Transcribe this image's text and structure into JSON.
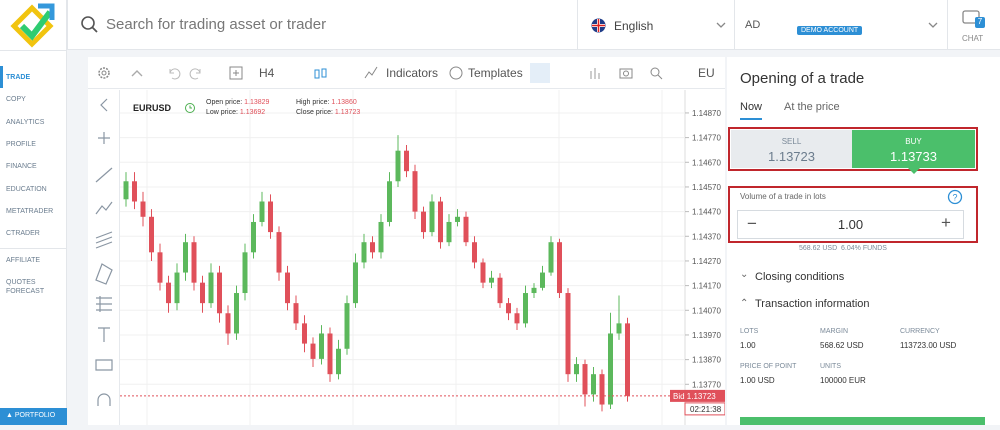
{
  "sidebar": {
    "menu": [
      "TRADE",
      "COPY",
      "ANALYTICS",
      "PROFILE",
      "FINANCE",
      "EDUCATION",
      "METATRADER",
      "CTRADER"
    ],
    "secondary": [
      "AFFILIATE",
      "QUOTES FORECAST"
    ],
    "portfolio": "PORTFOLIO"
  },
  "topbar": {
    "search": "Search for trading asset or trader",
    "language": "English",
    "account": "AD",
    "account_badge": "DEMO ACCOUNT",
    "chat": "CHAT",
    "chat_count": "7"
  },
  "toolbar": {
    "timeframe": "H4",
    "indicators": "Indicators",
    "templates": "Templates",
    "symbol_cut": "EU"
  },
  "chart": {
    "symbol": "EURUSD",
    "info": [
      [
        "Open price:",
        "1.13829"
      ],
      [
        "Low price:",
        "1.13692"
      ],
      [
        "High price:",
        "1.13860"
      ],
      [
        "Close price:",
        "1.13723"
      ]
    ],
    "ylim": [
      1.13605,
      1.14963
    ],
    "yticks": [
      {
        "value": 1.1487,
        "label": "1.14870"
      },
      {
        "value": 1.1477,
        "label": "1.14770"
      },
      {
        "value": 1.1467,
        "label": "1.14670"
      },
      {
        "value": 1.1457,
        "label": "1.14570"
      },
      {
        "value": 1.1447,
        "label": "1.14470"
      },
      {
        "value": 1.1437,
        "label": "1.14370"
      },
      {
        "value": 1.1427,
        "label": "1.14270"
      },
      {
        "value": 1.1417,
        "label": "1.14170"
      },
      {
        "value": 1.1407,
        "label": "1.14070"
      },
      {
        "value": 1.1397,
        "label": "1.13970"
      },
      {
        "value": 1.1387,
        "label": "1.13870"
      },
      {
        "value": 1.1377,
        "label": "1.13770"
      }
    ],
    "bid_title": "Bid",
    "bid": {
      "value": 1.13723,
      "label": "1.13723"
    },
    "timer": "02:21:38",
    "up_color": "#5cb85c",
    "down_color": "#e0505a",
    "candles": [
      [
        1.1452,
        1.1463,
        1.1449,
        1.14593
      ],
      [
        1.14593,
        1.1463,
        1.1448,
        1.14511
      ],
      [
        1.14511,
        1.1455,
        1.1441,
        1.14449
      ],
      [
        1.14449,
        1.1448,
        1.1427,
        1.14305
      ],
      [
        1.14305,
        1.1434,
        1.1415,
        1.14182
      ],
      [
        1.14182,
        1.1421,
        1.1406,
        1.14099
      ],
      [
        1.14099,
        1.1426,
        1.1407,
        1.14223
      ],
      [
        1.14223,
        1.1438,
        1.1419,
        1.14346
      ],
      [
        1.14346,
        1.1437,
        1.1415,
        1.14182
      ],
      [
        1.14182,
        1.1421,
        1.1406,
        1.14099
      ],
      [
        1.14099,
        1.1426,
        1.1408,
        1.14223
      ],
      [
        1.14223,
        1.1425,
        1.1402,
        1.14058
      ],
      [
        1.14058,
        1.1409,
        1.1393,
        1.13976
      ],
      [
        1.13976,
        1.1417,
        1.1395,
        1.1414
      ],
      [
        1.1414,
        1.1434,
        1.1411,
        1.14305
      ],
      [
        1.14305,
        1.1446,
        1.1428,
        1.14428
      ],
      [
        1.14428,
        1.1455,
        1.1441,
        1.14511
      ],
      [
        1.14511,
        1.1454,
        1.1436,
        1.14387
      ],
      [
        1.14387,
        1.1441,
        1.1419,
        1.14223
      ],
      [
        1.14223,
        1.1425,
        1.1407,
        1.14099
      ],
      [
        1.14099,
        1.1413,
        1.1399,
        1.14017
      ],
      [
        1.14017,
        1.1405,
        1.139,
        1.13935
      ],
      [
        1.13935,
        1.1396,
        1.1384,
        1.13873
      ],
      [
        1.13873,
        1.1401,
        1.1385,
        1.13976
      ],
      [
        1.13976,
        1.14,
        1.1378,
        1.13811
      ],
      [
        1.13811,
        1.1395,
        1.1379,
        1.13914
      ],
      [
        1.13914,
        1.1413,
        1.1389,
        1.14099
      ],
      [
        1.14099,
        1.143,
        1.1408,
        1.14264
      ],
      [
        1.14264,
        1.1438,
        1.1424,
        1.14346
      ],
      [
        1.14346,
        1.1437,
        1.1428,
        1.14305
      ],
      [
        1.14305,
        1.1446,
        1.1428,
        1.14428
      ],
      [
        1.14428,
        1.1463,
        1.1441,
        1.14593
      ],
      [
        1.14593,
        1.1478,
        1.1457,
        1.14717
      ],
      [
        1.14717,
        1.1474,
        1.1461,
        1.14634
      ],
      [
        1.14634,
        1.1466,
        1.1444,
        1.1447
      ],
      [
        1.1447,
        1.1449,
        1.1436,
        1.14387
      ],
      [
        1.14387,
        1.1454,
        1.1437,
        1.14511
      ],
      [
        1.14511,
        1.1453,
        1.1432,
        1.14346
      ],
      [
        1.14346,
        1.1446,
        1.1433,
        1.14428
      ],
      [
        1.14428,
        1.1448,
        1.1441,
        1.14449
      ],
      [
        1.14449,
        1.1447,
        1.1433,
        1.14346
      ],
      [
        1.14346,
        1.1437,
        1.1424,
        1.14264
      ],
      [
        1.14264,
        1.1428,
        1.1416,
        1.14182
      ],
      [
        1.14182,
        1.1423,
        1.1416,
        1.14202
      ],
      [
        1.14202,
        1.1422,
        1.1408,
        1.14099
      ],
      [
        1.14099,
        1.1412,
        1.1403,
        1.14058
      ],
      [
        1.14058,
        1.1408,
        1.1399,
        1.14017
      ],
      [
        1.14017,
        1.1417,
        1.14,
        1.1414
      ],
      [
        1.1414,
        1.1418,
        1.1412,
        1.14161
      ],
      [
        1.14161,
        1.1425,
        1.1415,
        1.14223
      ],
      [
        1.14223,
        1.1437,
        1.1421,
        1.14346
      ],
      [
        1.14346,
        1.1436,
        1.1412,
        1.1414
      ],
      [
        1.1414,
        1.1416,
        1.1378,
        1.13811
      ],
      [
        1.13811,
        1.1388,
        1.1378,
        1.13852
      ],
      [
        1.13852,
        1.1387,
        1.1368,
        1.13729
      ],
      [
        1.13729,
        1.1384,
        1.137,
        1.13811
      ],
      [
        1.13811,
        1.1383,
        1.1366,
        1.13688
      ],
      [
        1.13688,
        1.1406,
        1.1367,
        1.13976
      ],
      [
        1.13976,
        1.1413,
        1.1395,
        1.14017
      ],
      [
        1.14017,
        1.1404,
        1.137,
        1.13723
      ]
    ]
  },
  "trade": {
    "title": "Opening of a trade",
    "tabs": [
      "Now",
      "At the price"
    ],
    "sell_label": "SELL",
    "sell_price": "1.13723",
    "buy_label": "BUY",
    "buy_price": "1.13733",
    "volume_label": "Volume of a trade in lots",
    "volume": "1.00",
    "funds": "568.62 USD",
    "funds_pct": "6.04% FUNDS",
    "closing": "Closing conditions",
    "transaction": "Transaction information",
    "details": [
      [
        "LOTS",
        "1.00"
      ],
      [
        "MARGIN",
        "568.62 USD"
      ],
      [
        "CURRENCY",
        "113723.00 USD"
      ],
      [
        "PRICE OF POINT",
        "1.00 USD"
      ],
      [
        "UNITS",
        "100000 EUR"
      ]
    ]
  }
}
